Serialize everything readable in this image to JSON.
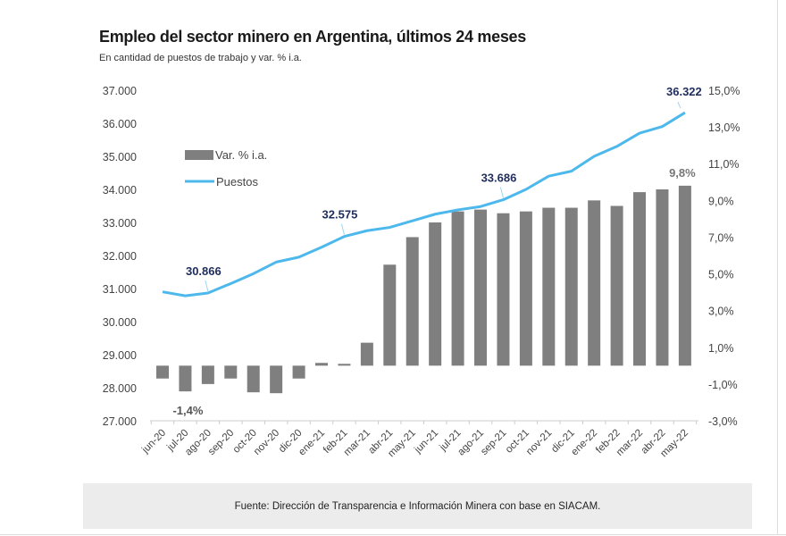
{
  "chart_data": {
    "type": "bar+line",
    "title": "Empleo del sector minero en Argentina, últimos 24 meses",
    "subtitle": "En cantidad de puestos de trabajo y var. % i.a.",
    "source": "Fuente: Dirección de Transparencia e Información Minera con base en SIACAM.",
    "categories": [
      "jun-20",
      "jul-20",
      "ago-20",
      "sep-20",
      "oct-20",
      "nov-20",
      "dic-20",
      "ene-21",
      "feb-21",
      "mar-21",
      "abr-21",
      "may-21",
      "jun-21",
      "jul-21",
      "ago-21",
      "sep-21",
      "oct-21",
      "nov-21",
      "dic-21",
      "ene-22",
      "feb-22",
      "mar-22",
      "abr-22",
      "may-22"
    ],
    "series": [
      {
        "name": "Var. % i.a.",
        "type": "bar",
        "axis": "right",
        "color": "#7f7f7f",
        "values": [
          -0.7,
          -1.4,
          -1.0,
          -0.7,
          -1.45,
          -1.5,
          -0.7,
          0.15,
          0.1,
          1.25,
          5.5,
          7.0,
          7.8,
          8.4,
          8.5,
          8.3,
          8.4,
          8.6,
          8.6,
          9.0,
          8.7,
          9.45,
          9.6,
          9.8
        ]
      },
      {
        "name": "Puestos",
        "type": "line",
        "axis": "left",
        "color": "#4db8ec",
        "values": [
          30900,
          30780,
          30866,
          31150,
          31450,
          31800,
          31950,
          32250,
          32575,
          32750,
          32850,
          33050,
          33250,
          33380,
          33480,
          33686,
          34000,
          34400,
          34550,
          35000,
          35300,
          35700,
          35900,
          36322
        ]
      }
    ],
    "left_axis": {
      "ylim": [
        27000,
        37000
      ],
      "ticks": [
        "27.000",
        "28.000",
        "29.000",
        "30.000",
        "31.000",
        "32.000",
        "33.000",
        "34.000",
        "35.000",
        "36.000",
        "37.000"
      ]
    },
    "right_axis": {
      "ylim": [
        -3,
        15
      ],
      "ticks": [
        "-3,0%",
        "-1,0%",
        "1,0%",
        "3,0%",
        "5,0%",
        "7,0%",
        "9,0%",
        "11,0%",
        "13,0%",
        "15,0%"
      ]
    },
    "annotations": [
      {
        "series": "Puestos",
        "index": 2,
        "text": "30.866"
      },
      {
        "series": "Puestos",
        "index": 8,
        "text": "32.575"
      },
      {
        "series": "Puestos",
        "index": 15,
        "text": "33.686"
      },
      {
        "series": "Puestos",
        "index": 23,
        "text": "36.322"
      },
      {
        "series": "Var. % i.a.",
        "index": 1,
        "text": "-1,4%"
      },
      {
        "series": "Var. % i.a.",
        "index": 23,
        "text": "9,8%"
      }
    ],
    "legend": {
      "position": "top-left",
      "items": [
        "Var. % i.a.",
        "Puestos"
      ]
    },
    "grid": false
  }
}
